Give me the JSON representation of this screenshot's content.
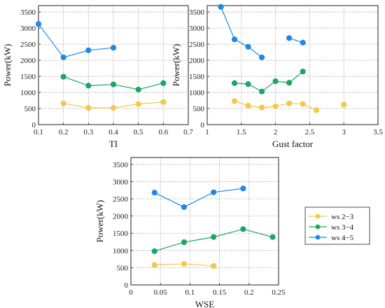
{
  "colors": {
    "ws23": "#f2c94c",
    "ws34": "#1aa760",
    "ws45": "#1e88e5"
  },
  "legend": {
    "items": [
      "ws 2−3",
      "ws 3−4",
      "ws 4−5"
    ]
  },
  "chart_data": [
    {
      "type": "line",
      "xlabel": "TI",
      "ylabel": "Power(kW)",
      "xlim": [
        0.1,
        0.7
      ],
      "ylim": [
        0,
        3700
      ],
      "xticks": [
        "0.1",
        "0.2",
        "0.3",
        "0.4",
        "0.5",
        "0.6",
        "0.7"
      ],
      "yticks": [
        "0",
        "500",
        "1000",
        "1500",
        "2000",
        "2500",
        "3000",
        "3500"
      ],
      "grid": true,
      "series": [
        {
          "name": "ws 2−3",
          "x": [
            0.2,
            0.3,
            0.4,
            0.5,
            0.6
          ],
          "y": [
            660,
            520,
            520,
            640,
            700
          ]
        },
        {
          "name": "ws 3−4",
          "x": [
            0.2,
            0.3,
            0.4,
            0.5,
            0.6
          ],
          "y": [
            1490,
            1210,
            1250,
            1090,
            1290
          ]
        },
        {
          "name": "ws 4−5",
          "x": [
            0.1,
            0.2,
            0.3,
            0.4
          ],
          "y": [
            3130,
            2090,
            2310,
            2390
          ]
        }
      ]
    },
    {
      "type": "line",
      "xlabel": "Gust factor",
      "ylabel": "Power(kW)",
      "xlim": [
        1,
        3.5
      ],
      "ylim": [
        0,
        3700
      ],
      "xticks": [
        "1",
        "1.5",
        "2",
        "2.5",
        "3",
        "3.5"
      ],
      "yticks": [
        "0",
        "500",
        "1000",
        "1500",
        "2000",
        "2500",
        "3000",
        "3500"
      ],
      "grid": true,
      "series": [
        {
          "name": "ws 2−3",
          "segments": [
            {
              "x": [
                1.4,
                1.6,
                1.8,
                2.0,
                2.2,
                2.4,
                2.6
              ],
              "y": [
                730,
                590,
                530,
                570,
                660,
                640,
                450
              ]
            },
            {
              "x": [
                3.0
              ],
              "y": [
                620
              ]
            }
          ]
        },
        {
          "name": "ws 3−4",
          "segments": [
            {
              "x": [
                1.4,
                1.6,
                1.8,
                2.0,
                2.2,
                2.4
              ],
              "y": [
                1290,
                1260,
                1030,
                1350,
                1300,
                1650
              ]
            }
          ]
        },
        {
          "name": "ws 4−5",
          "segments": [
            {
              "x": [
                1.2,
                1.4,
                1.6,
                1.8
              ],
              "y": [
                3660,
                2650,
                2420,
                2090
              ]
            },
            {
              "x": [
                2.2,
                2.4
              ],
              "y": [
                2690,
                2550
              ]
            }
          ]
        }
      ]
    },
    {
      "type": "line",
      "xlabel": "WSE",
      "ylabel": "Power(kW)",
      "xlim": [
        0,
        0.25
      ],
      "ylim": [
        0,
        3700
      ],
      "xticks": [
        "0",
        "0.05",
        "0.1",
        "0.15",
        "0.2",
        "0.25"
      ],
      "yticks": [
        "0",
        "500",
        "1000",
        "1500",
        "2000",
        "2500",
        "3000",
        "3500"
      ],
      "grid": true,
      "series": [
        {
          "name": "ws 2−3",
          "x": [
            0.04,
            0.09,
            0.14
          ],
          "y": [
            580,
            610,
            550
          ]
        },
        {
          "name": "ws 3−4",
          "x": [
            0.04,
            0.09,
            0.14,
            0.19,
            0.24
          ],
          "y": [
            980,
            1240,
            1390,
            1620,
            1390
          ]
        },
        {
          "name": "ws 4−5",
          "x": [
            0.04,
            0.09,
            0.14,
            0.19
          ],
          "y": [
            2680,
            2260,
            2690,
            2800
          ]
        }
      ]
    }
  ]
}
